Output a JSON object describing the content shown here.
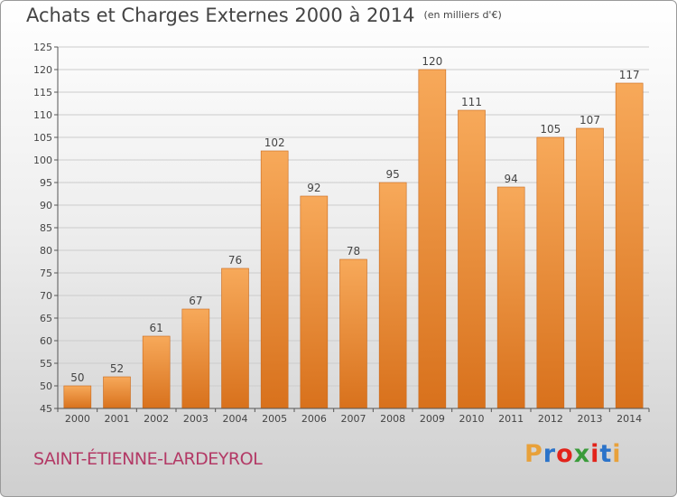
{
  "header": {
    "title": "Achats et Charges Externes 2000 à 2014",
    "unit": "(en milliers d'€)"
  },
  "place": {
    "name": "SAINT-ÉTIENNE-LARDEYROL"
  },
  "logo": {
    "letters": [
      "P",
      "r",
      "o",
      "x",
      "i",
      "t",
      "i"
    ],
    "colors": [
      "#e8a13a",
      "#2b73c9",
      "#e2231a",
      "#3a9b3a",
      "#e2231a",
      "#2b73c9",
      "#e8a13a"
    ]
  },
  "chart_data": {
    "type": "bar",
    "categories": [
      "2000",
      "2001",
      "2002",
      "2003",
      "2004",
      "2005",
      "2006",
      "2007",
      "2008",
      "2009",
      "2010",
      "2011",
      "2012",
      "2013",
      "2014"
    ],
    "values": [
      50,
      52,
      61,
      67,
      76,
      102,
      92,
      78,
      95,
      120,
      111,
      94,
      105,
      107,
      117
    ],
    "ylim": [
      45,
      125
    ],
    "yticks": [
      45,
      50,
      55,
      60,
      65,
      70,
      75,
      80,
      85,
      90,
      95,
      100,
      105,
      110,
      115,
      120,
      125
    ],
    "grid": true,
    "colors": {
      "bar_light": "#f7a95a",
      "bar_dark": "#d8711c",
      "grid": "#cccccc",
      "axis": "#555555"
    }
  }
}
